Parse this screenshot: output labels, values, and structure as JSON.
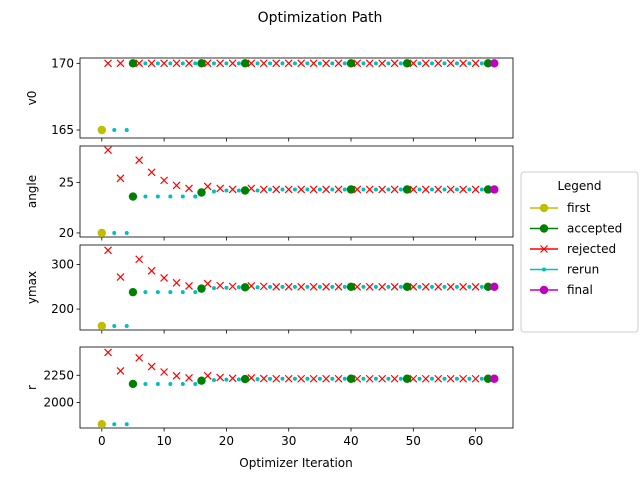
{
  "chart_data": {
    "type": "scatter",
    "title": "Optimization Path",
    "xlabel": "Optimizer Iteration",
    "xlim": [
      -3.5,
      66
    ],
    "xticks": [
      0,
      10,
      20,
      30,
      40,
      50,
      60
    ],
    "legend": {
      "title": "Legend",
      "placement": "right",
      "entries": [
        {
          "label": "first",
          "color": "#bfbf00",
          "marker": "circle"
        },
        {
          "label": "accepted",
          "color": "#008000",
          "marker": "circle"
        },
        {
          "label": "rejected",
          "color": "#ff0000",
          "marker": "x"
        },
        {
          "label": "rerun",
          "color": "#00bfbf",
          "marker": "point"
        },
        {
          "label": "final",
          "color": "#bf00bf",
          "marker": "circle"
        }
      ]
    },
    "panels": [
      {
        "ylabel": "v0",
        "ylim": [
          164.4,
          170.4
        ],
        "yticks": [
          165,
          170
        ],
        "series": {
          "first": [
            [
              0,
              165
            ]
          ],
          "accepted": [
            [
              5,
              170
            ],
            [
              16,
              170
            ],
            [
              23,
              170
            ],
            [
              40,
              170
            ],
            [
              49,
              170
            ],
            [
              62,
              170
            ]
          ],
          "rejected": [
            [
              1,
              170
            ],
            [
              3,
              170
            ],
            [
              6,
              170
            ],
            [
              8,
              170
            ],
            [
              10,
              170
            ],
            [
              12,
              170
            ],
            [
              14,
              170
            ],
            [
              17,
              170
            ],
            [
              19,
              170
            ],
            [
              21,
              170
            ],
            [
              24,
              170
            ],
            [
              26,
              170
            ],
            [
              28,
              170
            ],
            [
              30,
              170
            ],
            [
              32,
              170
            ],
            [
              34,
              170
            ],
            [
              36,
              170
            ],
            [
              38,
              170
            ],
            [
              41,
              170
            ],
            [
              43,
              170
            ],
            [
              45,
              170
            ],
            [
              47,
              170
            ],
            [
              50,
              170
            ],
            [
              52,
              170
            ],
            [
              54,
              170
            ],
            [
              56,
              170
            ],
            [
              58,
              170
            ],
            [
              60,
              170
            ]
          ],
          "rerun": [
            [
              2,
              165
            ],
            [
              4,
              165
            ],
            [
              7,
              170
            ],
            [
              9,
              170
            ],
            [
              11,
              170
            ],
            [
              13,
              170
            ],
            [
              15,
              170
            ],
            [
              18,
              170
            ],
            [
              20,
              170
            ],
            [
              22,
              170
            ],
            [
              25,
              170
            ],
            [
              27,
              170
            ],
            [
              29,
              170
            ],
            [
              31,
              170
            ],
            [
              33,
              170
            ],
            [
              35,
              170
            ],
            [
              37,
              170
            ],
            [
              39,
              170
            ],
            [
              42,
              170
            ],
            [
              44,
              170
            ],
            [
              46,
              170
            ],
            [
              48,
              170
            ],
            [
              51,
              170
            ],
            [
              53,
              170
            ],
            [
              55,
              170
            ],
            [
              57,
              170
            ],
            [
              59,
              170
            ],
            [
              61,
              170
            ]
          ],
          "final": [
            [
              63,
              170
            ]
          ]
        }
      },
      {
        "ylabel": "angle",
        "ylim": [
          19.6,
          28.6
        ],
        "yticks": [
          20,
          25
        ],
        "series": {
          "first": [
            [
              0,
              20
            ]
          ],
          "accepted": [
            [
              5,
              23.6
            ],
            [
              16,
              24.0
            ],
            [
              23,
              24.2
            ],
            [
              40,
              24.3
            ],
            [
              49,
              24.3
            ],
            [
              62,
              24.3
            ]
          ],
          "rejected": [
            [
              1,
              28.2
            ],
            [
              3,
              25.4
            ],
            [
              6,
              27.2
            ],
            [
              8,
              26.0
            ],
            [
              10,
              25.2
            ],
            [
              12,
              24.7
            ],
            [
              14,
              24.4
            ],
            [
              17,
              24.6
            ],
            [
              19,
              24.4
            ],
            [
              21,
              24.3
            ],
            [
              24,
              24.4
            ],
            [
              26,
              24.3
            ],
            [
              28,
              24.3
            ],
            [
              30,
              24.3
            ],
            [
              32,
              24.3
            ],
            [
              34,
              24.3
            ],
            [
              36,
              24.3
            ],
            [
              38,
              24.3
            ],
            [
              41,
              24.3
            ],
            [
              43,
              24.3
            ],
            [
              45,
              24.3
            ],
            [
              47,
              24.3
            ],
            [
              50,
              24.3
            ],
            [
              52,
              24.3
            ],
            [
              54,
              24.3
            ],
            [
              56,
              24.3
            ],
            [
              58,
              24.3
            ],
            [
              60,
              24.3
            ]
          ],
          "rerun": [
            [
              2,
              20
            ],
            [
              4,
              20
            ],
            [
              7,
              23.6
            ],
            [
              9,
              23.6
            ],
            [
              11,
              23.6
            ],
            [
              13,
              23.6
            ],
            [
              15,
              23.6
            ],
            [
              18,
              24.1
            ],
            [
              20,
              24.2
            ],
            [
              22,
              24.2
            ],
            [
              25,
              24.2
            ],
            [
              27,
              24.3
            ],
            [
              29,
              24.3
            ],
            [
              31,
              24.3
            ],
            [
              33,
              24.3
            ],
            [
              35,
              24.3
            ],
            [
              37,
              24.3
            ],
            [
              39,
              24.3
            ],
            [
              42,
              24.3
            ],
            [
              44,
              24.3
            ],
            [
              46,
              24.3
            ],
            [
              48,
              24.3
            ],
            [
              51,
              24.3
            ],
            [
              53,
              24.3
            ],
            [
              55,
              24.3
            ],
            [
              57,
              24.3
            ],
            [
              59,
              24.3
            ],
            [
              61,
              24.3
            ]
          ],
          "final": [
            [
              63,
              24.3
            ]
          ]
        }
      },
      {
        "ylabel": "ymax",
        "ylim": [
          153,
          344
        ],
        "yticks": [
          200,
          300
        ],
        "series": {
          "first": [
            [
              0,
              162
            ]
          ],
          "accepted": [
            [
              5,
              238
            ],
            [
              16,
              246
            ],
            [
              23,
              249
            ],
            [
              40,
              250
            ],
            [
              49,
              250
            ],
            [
              62,
              250
            ]
          ],
          "rejected": [
            [
              1,
              332
            ],
            [
              3,
              272
            ],
            [
              6,
              312
            ],
            [
              8,
              286
            ],
            [
              10,
              270
            ],
            [
              12,
              259
            ],
            [
              14,
              252
            ],
            [
              17,
              257
            ],
            [
              19,
              253
            ],
            [
              21,
              251
            ],
            [
              24,
              252
            ],
            [
              26,
              251
            ],
            [
              28,
              250
            ],
            [
              30,
              250
            ],
            [
              32,
              250
            ],
            [
              34,
              250
            ],
            [
              36,
              250
            ],
            [
              38,
              250
            ],
            [
              41,
              250
            ],
            [
              43,
              250
            ],
            [
              45,
              250
            ],
            [
              47,
              250
            ],
            [
              50,
              250
            ],
            [
              52,
              250
            ],
            [
              54,
              250
            ],
            [
              56,
              250
            ],
            [
              58,
              250
            ],
            [
              60,
              250
            ]
          ],
          "rerun": [
            [
              2,
              162
            ],
            [
              4,
              162
            ],
            [
              7,
              238
            ],
            [
              9,
              238
            ],
            [
              11,
              238
            ],
            [
              13,
              238
            ],
            [
              15,
              238
            ],
            [
              18,
              247
            ],
            [
              20,
              248
            ],
            [
              22,
              249
            ],
            [
              25,
              249
            ],
            [
              27,
              250
            ],
            [
              29,
              250
            ],
            [
              31,
              250
            ],
            [
              33,
              250
            ],
            [
              35,
              250
            ],
            [
              37,
              250
            ],
            [
              39,
              250
            ],
            [
              42,
              250
            ],
            [
              44,
              250
            ],
            [
              46,
              250
            ],
            [
              48,
              250
            ],
            [
              51,
              250
            ],
            [
              53,
              250
            ],
            [
              55,
              250
            ],
            [
              57,
              250
            ],
            [
              59,
              250
            ],
            [
              61,
              250
            ]
          ],
          "final": [
            [
              63,
              250
            ]
          ]
        }
      },
      {
        "ylabel": "r",
        "ylim": [
          1765,
          2510
        ],
        "yticks": [
          2000,
          2250
        ],
        "series": {
          "first": [
            [
              0,
              1800
            ]
          ],
          "accepted": [
            [
              5,
              2170
            ],
            [
              16,
              2200
            ],
            [
              23,
              2215
            ],
            [
              40,
              2218
            ],
            [
              49,
              2218
            ],
            [
              62,
              2218
            ]
          ],
          "rejected": [
            [
              1,
              2460
            ],
            [
              3,
              2290
            ],
            [
              6,
              2410
            ],
            [
              8,
              2330
            ],
            [
              10,
              2280
            ],
            [
              12,
              2245
            ],
            [
              14,
              2225
            ],
            [
              17,
              2245
            ],
            [
              19,
              2230
            ],
            [
              21,
              2222
            ],
            [
              24,
              2225
            ],
            [
              26,
              2220
            ],
            [
              28,
              2218
            ],
            [
              30,
              2218
            ],
            [
              32,
              2218
            ],
            [
              34,
              2218
            ],
            [
              36,
              2218
            ],
            [
              38,
              2218
            ],
            [
              41,
              2218
            ],
            [
              43,
              2218
            ],
            [
              45,
              2218
            ],
            [
              47,
              2218
            ],
            [
              50,
              2218
            ],
            [
              52,
              2218
            ],
            [
              54,
              2218
            ],
            [
              56,
              2218
            ],
            [
              58,
              2218
            ],
            [
              60,
              2218
            ]
          ],
          "rerun": [
            [
              2,
              1800
            ],
            [
              4,
              1800
            ],
            [
              7,
              2170
            ],
            [
              9,
              2170
            ],
            [
              11,
              2170
            ],
            [
              13,
              2170
            ],
            [
              15,
              2170
            ],
            [
              18,
              2205
            ],
            [
              20,
              2210
            ],
            [
              22,
              2212
            ],
            [
              25,
              2215
            ],
            [
              27,
              2217
            ],
            [
              29,
              2218
            ],
            [
              31,
              2218
            ],
            [
              33,
              2218
            ],
            [
              35,
              2218
            ],
            [
              37,
              2218
            ],
            [
              39,
              2218
            ],
            [
              42,
              2218
            ],
            [
              44,
              2218
            ],
            [
              46,
              2218
            ],
            [
              48,
              2218
            ],
            [
              51,
              2218
            ],
            [
              53,
              2218
            ],
            [
              55,
              2218
            ],
            [
              57,
              2218
            ],
            [
              59,
              2218
            ],
            [
              61,
              2218
            ]
          ],
          "final": [
            [
              63,
              2218
            ]
          ]
        }
      }
    ]
  }
}
